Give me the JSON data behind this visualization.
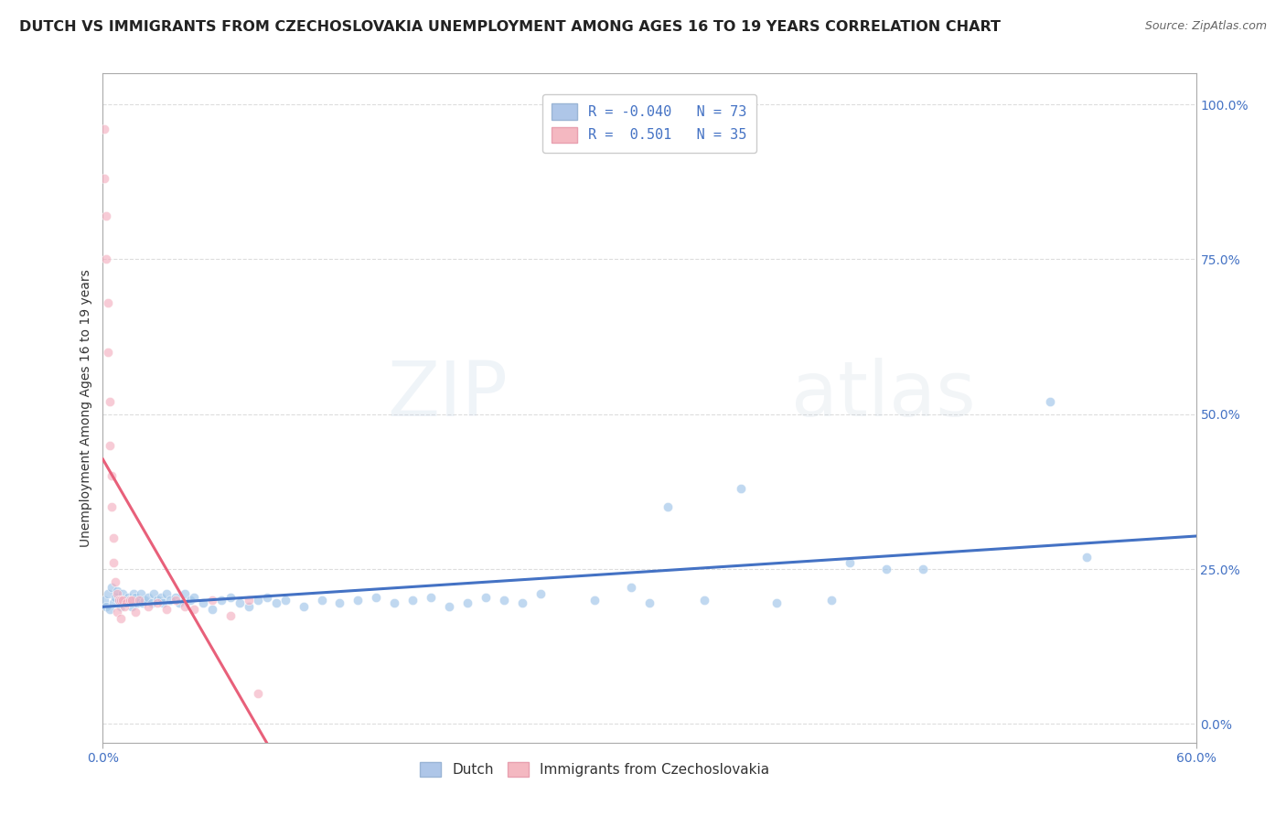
{
  "title": "DUTCH VS IMMIGRANTS FROM CZECHOSLOVAKIA UNEMPLOYMENT AMONG AGES 16 TO 19 YEARS CORRELATION CHART",
  "source": "Source: ZipAtlas.com",
  "ylabel": "Unemployment Among Ages 16 to 19 years",
  "ylabel_right_ticks": [
    "100.0%",
    "75.0%",
    "50.0%",
    "25.0%",
    "0.0%"
  ],
  "ylabel_right_vals": [
    1.0,
    0.75,
    0.5,
    0.25,
    0.0
  ],
  "legend_entries": [
    {
      "label": "Dutch",
      "color": "#aec6e8",
      "R": -0.04,
      "N": 73
    },
    {
      "label": "Immigrants from Czechoslovakia",
      "color": "#f4b8c1",
      "R": 0.501,
      "N": 35
    }
  ],
  "blue_scatter_x": [
    0.001,
    0.002,
    0.003,
    0.004,
    0.005,
    0.006,
    0.007,
    0.008,
    0.009,
    0.01,
    0.011,
    0.012,
    0.013,
    0.014,
    0.015,
    0.016,
    0.017,
    0.018,
    0.019,
    0.02,
    0.021,
    0.022,
    0.023,
    0.025,
    0.027,
    0.028,
    0.03,
    0.032,
    0.033,
    0.035,
    0.037,
    0.04,
    0.042,
    0.045,
    0.048,
    0.05,
    0.055,
    0.06,
    0.065,
    0.07,
    0.075,
    0.08,
    0.085,
    0.09,
    0.095,
    0.1,
    0.11,
    0.12,
    0.13,
    0.14,
    0.15,
    0.16,
    0.17,
    0.18,
    0.19,
    0.2,
    0.21,
    0.22,
    0.23,
    0.24,
    0.27,
    0.3,
    0.33,
    0.37,
    0.4,
    0.43,
    0.29,
    0.31,
    0.35,
    0.41,
    0.45,
    0.52,
    0.54
  ],
  "blue_scatter_y": [
    0.2,
    0.19,
    0.21,
    0.185,
    0.22,
    0.195,
    0.205,
    0.215,
    0.2,
    0.19,
    0.21,
    0.2,
    0.195,
    0.205,
    0.2,
    0.19,
    0.21,
    0.205,
    0.195,
    0.2,
    0.21,
    0.195,
    0.2,
    0.205,
    0.195,
    0.21,
    0.2,
    0.205,
    0.195,
    0.21,
    0.2,
    0.205,
    0.195,
    0.21,
    0.2,
    0.205,
    0.195,
    0.185,
    0.2,
    0.205,
    0.195,
    0.19,
    0.2,
    0.205,
    0.195,
    0.2,
    0.19,
    0.2,
    0.195,
    0.2,
    0.205,
    0.195,
    0.2,
    0.205,
    0.19,
    0.195,
    0.205,
    0.2,
    0.195,
    0.21,
    0.2,
    0.195,
    0.2,
    0.195,
    0.2,
    0.25,
    0.22,
    0.35,
    0.38,
    0.26,
    0.25,
    0.52,
    0.27
  ],
  "pink_scatter_x": [
    0.001,
    0.001,
    0.002,
    0.002,
    0.003,
    0.003,
    0.004,
    0.004,
    0.005,
    0.005,
    0.006,
    0.006,
    0.007,
    0.008,
    0.008,
    0.009,
    0.01,
    0.01,
    0.011,
    0.012,
    0.013,
    0.015,
    0.016,
    0.018,
    0.02,
    0.025,
    0.03,
    0.035,
    0.04,
    0.045,
    0.05,
    0.06,
    0.07,
    0.08,
    0.085
  ],
  "pink_scatter_y": [
    0.96,
    0.88,
    0.82,
    0.75,
    0.68,
    0.6,
    0.52,
    0.45,
    0.4,
    0.35,
    0.3,
    0.26,
    0.23,
    0.21,
    0.18,
    0.2,
    0.2,
    0.17,
    0.2,
    0.19,
    0.195,
    0.2,
    0.2,
    0.18,
    0.2,
    0.19,
    0.195,
    0.185,
    0.2,
    0.19,
    0.185,
    0.2,
    0.175,
    0.2,
    0.05
  ],
  "blue_line_color": "#4472c4",
  "pink_line_color": "#e8607a",
  "scatter_blue_color": "#9ec4e8",
  "scatter_pink_color": "#f4b0c0",
  "scatter_size": 55,
  "scatter_alpha": 0.65,
  "background_color": "#ffffff",
  "grid_color": "#dddddd",
  "title_fontsize": 11.5,
  "axis_label_fontsize": 10,
  "tick_fontsize": 10,
  "legend_fontsize": 11,
  "watermark_text": "ZIPatlas",
  "watermark_alpha": 0.18,
  "watermark_fontsize": 60,
  "xmin": 0.0,
  "xmax": 0.6,
  "ymin": -0.03,
  "ymax": 1.05
}
